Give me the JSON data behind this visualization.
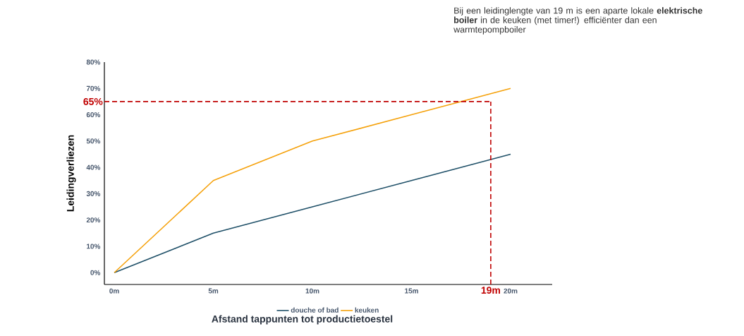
{
  "chart_data": {
    "type": "line",
    "xlabel": "Afstand tappunten tot productietoestel",
    "ylabel": "Leidingverliezen",
    "x": [
      0,
      5,
      10,
      15,
      20
    ],
    "series": [
      {
        "name": "douche of bad",
        "color": "#1f5068",
        "values": [
          0,
          15,
          25,
          35,
          45
        ]
      },
      {
        "name": "keuken",
        "color": "#f5a10a",
        "values": [
          0,
          35,
          50,
          60,
          70
        ]
      }
    ],
    "xlim": [
      -0.5,
      22.1
    ],
    "ylim": [
      -4.5,
      80
    ],
    "xticks": [
      {
        "value": 0,
        "label": "0m"
      },
      {
        "value": 5,
        "label": "5m"
      },
      {
        "value": 10,
        "label": "10m"
      },
      {
        "value": 15,
        "label": "15m"
      },
      {
        "value": 20,
        "label": "20m"
      }
    ],
    "yticks": [
      {
        "value": 0,
        "label": "0%"
      },
      {
        "value": 10,
        "label": "10%"
      },
      {
        "value": 20,
        "label": "20%"
      },
      {
        "value": 30,
        "label": "30%"
      },
      {
        "value": 40,
        "label": "40%"
      },
      {
        "value": 50,
        "label": "50%"
      },
      {
        "value": 60,
        "label": "60%"
      },
      {
        "value": 70,
        "label": "70%"
      },
      {
        "value": 80,
        "label": "80%"
      }
    ],
    "ref_lines": [
      {
        "axis": "y",
        "value": 65,
        "label": "65%",
        "color": "#c00000",
        "line_style": "dashed"
      },
      {
        "axis": "x",
        "value": 19,
        "label": "19m",
        "color": "#c00000",
        "line_style": "dashed"
      }
    ],
    "annotations": [
      "Bij een leidinglengte van 19 m is een aparte lokale **elektrische boiler** in de keuken (met timer!) efficiënter dan een warmtepompboiler"
    ],
    "legend": "bottom",
    "grid": false,
    "marker": "none",
    "line_style": "solid"
  }
}
